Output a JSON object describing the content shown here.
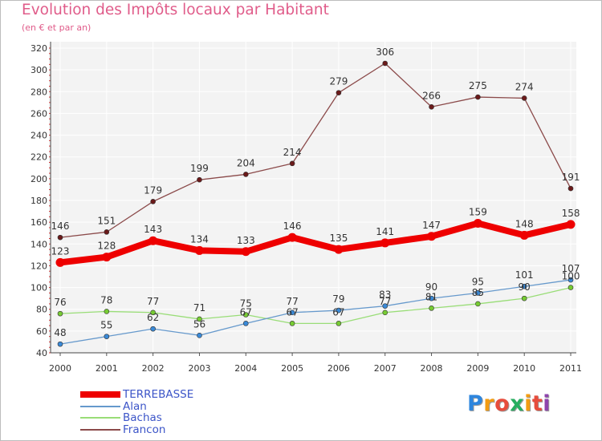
{
  "chart_data": {
    "type": "line",
    "title": "Evolution des Impôts locaux par Habitant",
    "subtitle": "(en € et par an)",
    "x": [
      "2000",
      "2001",
      "2002",
      "2003",
      "2004",
      "2005",
      "2006",
      "2007",
      "2008",
      "2009",
      "2010",
      "2011"
    ],
    "yticks": [
      40,
      60,
      80,
      100,
      120,
      140,
      160,
      180,
      200,
      220,
      240,
      260,
      280,
      300,
      320
    ],
    "ylim": [
      40,
      320
    ],
    "grid": true,
    "legend_position": "bottom-left",
    "series": [
      {
        "name": "TERREBASSE",
        "color": "#ee0000",
        "marker_color": "#ee0000",
        "style": "thick",
        "values": [
          123,
          128,
          143,
          134,
          133,
          146,
          135,
          141,
          147,
          159,
          148,
          158
        ],
        "labels": [
          "123",
          "128",
          "143",
          "134",
          "133",
          "146",
          "135",
          "141",
          "147",
          "159",
          "148",
          "158"
        ]
      },
      {
        "name": "Alan",
        "color": "#6699cc",
        "marker_color": "#3a8ad8",
        "style": "thin",
        "values": [
          48,
          55,
          62,
          56,
          67,
          77,
          79,
          83,
          90,
          95,
          101,
          107
        ],
        "labels": [
          "48",
          "55",
          "62",
          "56",
          "67",
          "77",
          "79",
          "83",
          "90",
          "95",
          "101",
          "107"
        ]
      },
      {
        "name": "Bachas",
        "color": "#99dd77",
        "marker_color": "#77cc33",
        "style": "thin",
        "values": [
          76,
          78,
          77,
          71,
          75,
          67,
          67,
          77,
          81,
          85,
          90,
          100
        ],
        "labels": [
          "76",
          "78",
          "77",
          "71",
          "75",
          "67",
          "67",
          "77",
          "81",
          "85",
          "90",
          "100"
        ]
      },
      {
        "name": "Francon",
        "color": "#8b4a4a",
        "marker_color": "#6b1a1a",
        "style": "thin",
        "values": [
          146,
          151,
          179,
          199,
          204,
          214,
          279,
          306,
          266,
          275,
          274,
          191
        ],
        "labels": [
          "146",
          "151",
          "179",
          "199",
          "204",
          "214",
          "279",
          "306",
          "266",
          "275",
          "274",
          "191"
        ]
      }
    ]
  },
  "branding": {
    "logo_letters": [
      "P",
      "r",
      "o",
      "x",
      "i",
      "t",
      "i"
    ],
    "logo_colors": [
      "#2e86de",
      "#f39c12",
      "#e74c3c",
      "#27ae60",
      "#f39c12",
      "#e74c3c",
      "#8e44ad"
    ]
  }
}
